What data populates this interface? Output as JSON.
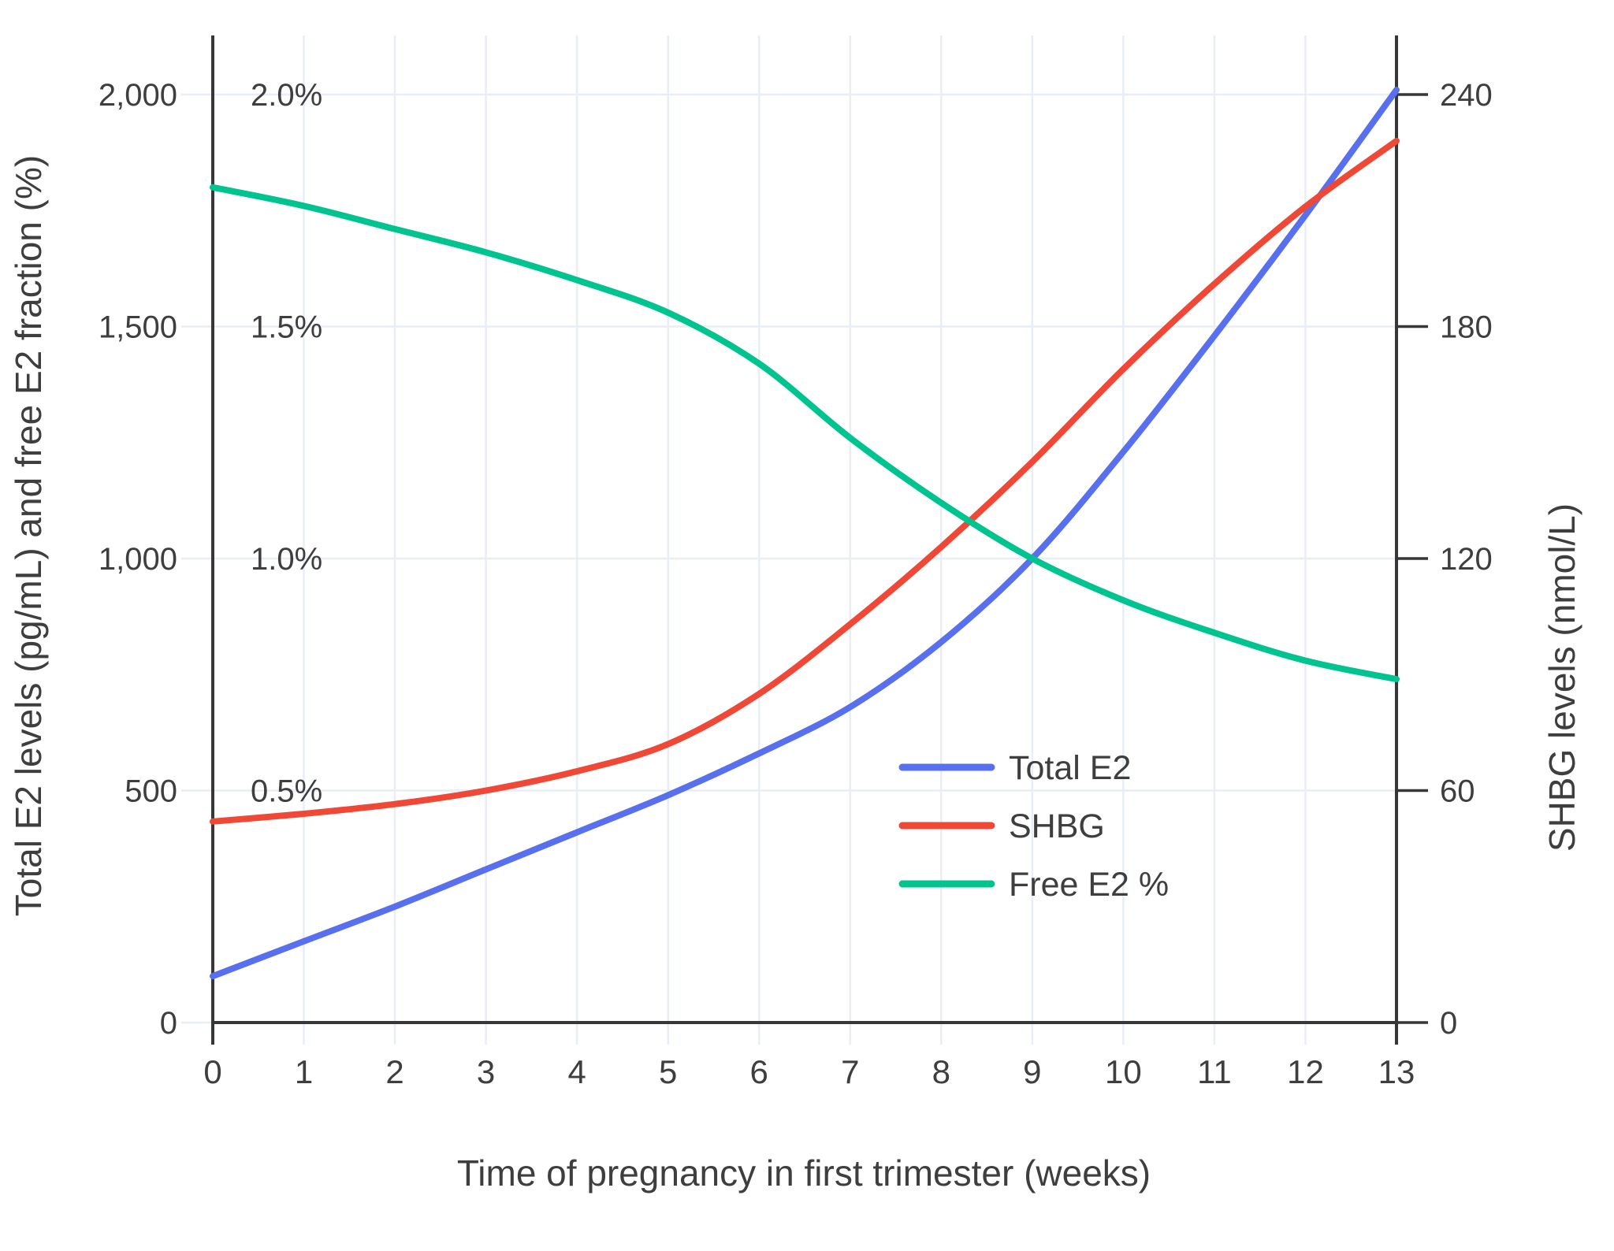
{
  "chart_data": {
    "type": "line",
    "title": "",
    "xlabel": "Time of pregnancy in first trimester (weeks)",
    "ylabel_left": "Total E2 levels (pg/mL) and free E2 fraction (%)",
    "ylabel_right": "SHBG levels (nmol/L)",
    "x": [
      0,
      1,
      2,
      3,
      4,
      5,
      6,
      7,
      8,
      9,
      10,
      11,
      12,
      13
    ],
    "x_tick_labels": [
      "0",
      "1",
      "2",
      "3",
      "4",
      "5",
      "6",
      "7",
      "8",
      "9",
      "10",
      "11",
      "12",
      "13"
    ],
    "y_left_axis": {
      "range": [
        0,
        2000
      ],
      "tick_values": [
        0,
        500,
        1000,
        1500,
        2000
      ],
      "tick_labels": [
        "0",
        "500",
        "1,000",
        "1,500",
        "2,000"
      ]
    },
    "percent_inner_labels": {
      "tick_values": [
        500,
        1000,
        1500,
        2000
      ],
      "tick_labels": [
        "0.5%",
        "1.0%",
        "1.5%",
        "2.0%"
      ]
    },
    "y_right_axis": {
      "range": [
        0,
        240
      ],
      "tick_values": [
        0,
        60,
        120,
        180,
        240
      ],
      "tick_labels": [
        "0",
        "60",
        "120",
        "180",
        "240"
      ]
    },
    "grid": true,
    "legend_position": "inside lower-right",
    "series": [
      {
        "name": "Total E2",
        "unit": "pg/mL",
        "axis": "left",
        "color": "#5970ee",
        "values": [
          100,
          175,
          250,
          330,
          410,
          490,
          580,
          680,
          820,
          1000,
          1230,
          1480,
          1740,
          2010
        ]
      },
      {
        "name": "SHBG",
        "unit": "nmol/L",
        "axis": "right",
        "color": "#ef4837",
        "values": [
          52,
          54,
          56.5,
          60,
          65,
          72,
          85,
          103,
          123,
          145,
          169,
          191,
          211,
          228
        ]
      },
      {
        "name": "Free E2 %",
        "unit": "%",
        "axis": "left-percent",
        "color": "#00c48f",
        "values": [
          1.8,
          1.76,
          1.71,
          1.66,
          1.6,
          1.53,
          1.42,
          1.26,
          1.12,
          1.0,
          0.91,
          0.84,
          0.78,
          0.74
        ]
      }
    ]
  },
  "legend": {
    "items": [
      {
        "label": "Total E2",
        "color": "#5970ee"
      },
      {
        "label": "SHBG",
        "color": "#ef4837"
      },
      {
        "label": "Free E2 %",
        "color": "#00c48f"
      }
    ]
  },
  "style_colors": {
    "axis": "#373737",
    "grid": "#e8edf6",
    "text": "#3e3e3e",
    "background": "#ffffff"
  }
}
